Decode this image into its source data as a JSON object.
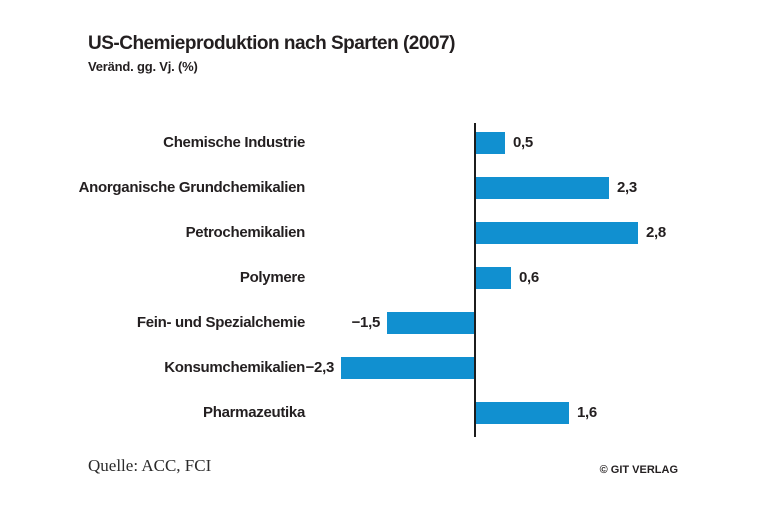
{
  "header": {
    "title": "US-Chemieproduktion nach Sparten (2007)",
    "subtitle": "Veränd. gg. Vj. (%)"
  },
  "chart_data": {
    "type": "bar",
    "orientation": "horizontal",
    "title": "US-Chemieproduktion nach Sparten (2007)",
    "subtitle": "Veränd. gg. Vj. (%)",
    "unit": "percent change vs. previous year",
    "categories": [
      "Chemische Industrie",
      "Anorganische Grundchemikalien",
      "Petrochemikalien",
      "Polymere",
      "Fein- und Spezialchemie",
      "Konsumchemikalien",
      "Pharmazeutika"
    ],
    "values": [
      0.5,
      2.3,
      2.8,
      0.6,
      -1.5,
      -2.3,
      1.6
    ],
    "value_labels": [
      "0,5",
      "2,3",
      "2,8",
      "0,6",
      "−1,5",
      "−2,3",
      "1,6"
    ],
    "xlim": [
      -2.5,
      3.0
    ],
    "grid": false,
    "legend": false,
    "bar_color": "#1190d0",
    "axis_color": "#1c1c1c",
    "text_color": "#231f20"
  },
  "footer": {
    "source": "Quelle: ACC, FCI",
    "copyright": "© GIT VERLAG"
  }
}
